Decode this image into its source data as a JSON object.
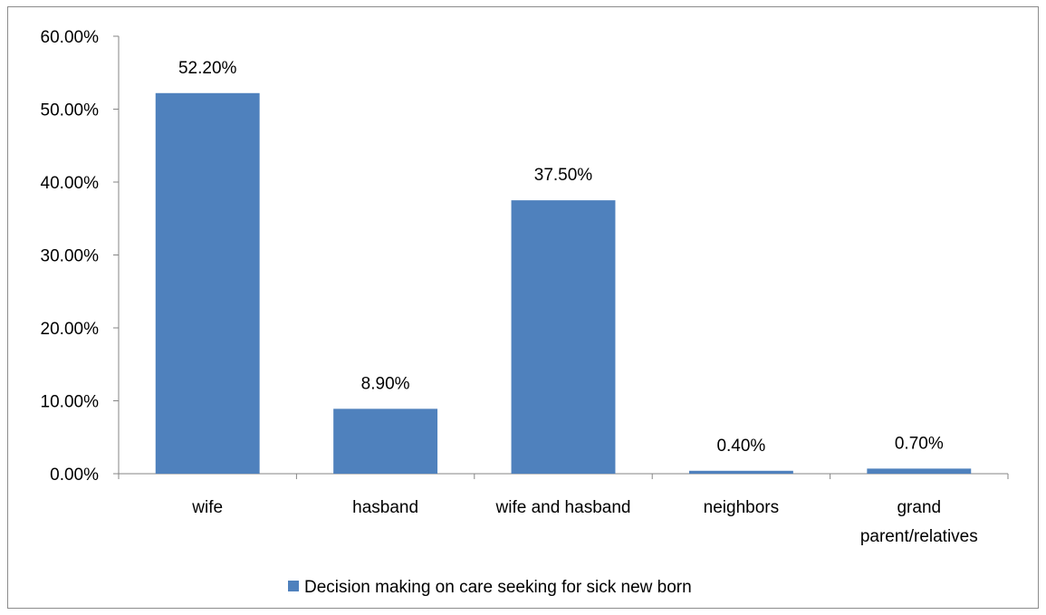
{
  "chart_data": {
    "type": "bar",
    "title": "",
    "xlabel": "",
    "ylabel": "",
    "categories": [
      [
        "wife"
      ],
      [
        "hasband"
      ],
      [
        "wife and hasband"
      ],
      [
        "neighbors"
      ],
      [
        "grand",
        "parent/relatives"
      ]
    ],
    "series": [
      {
        "name": "Decision making on care seeking for sick new born",
        "values": [
          52.2,
          8.9,
          37.5,
          0.4,
          0.7
        ],
        "data_labels": [
          "52.20%",
          "8.90%",
          "37.50%",
          "0.40%",
          "0.70%"
        ],
        "color": "#4F81BD"
      }
    ],
    "ylim": [
      0,
      60
    ],
    "y_ticks": [
      0,
      10,
      20,
      30,
      40,
      50,
      60
    ],
    "y_tick_labels": [
      "0.00%",
      "10.00%",
      "20.00%",
      "30.00%",
      "40.00%",
      "50.00%",
      "60.00%"
    ],
    "grid": false,
    "legend_position": "bottom"
  }
}
